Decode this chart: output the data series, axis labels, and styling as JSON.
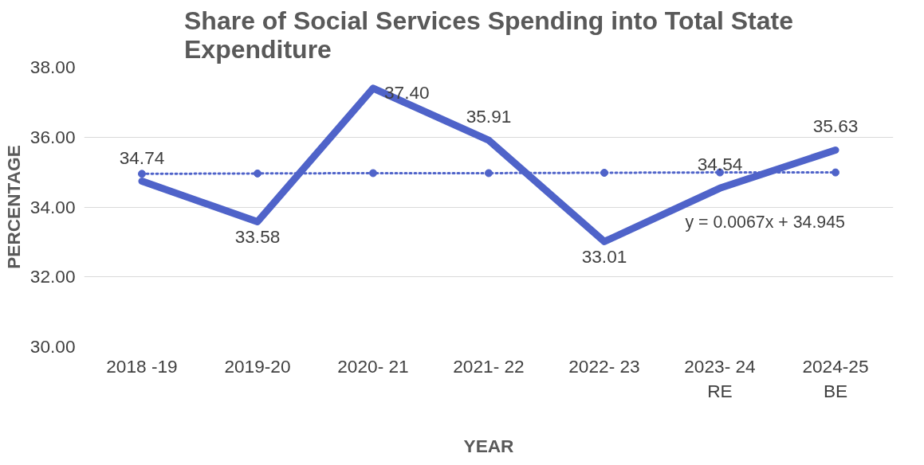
{
  "chart_data": {
    "type": "line",
    "title": "Share of Social Services Spending into Total State Expenditure",
    "xlabel": "YEAR",
    "ylabel": "PERCENTAGE",
    "categories": [
      "2018 -19",
      "2019-20",
      "2020- 21",
      "2021- 22",
      "2022- 23",
      "2023- 24\nRE",
      "2024-25\nBE"
    ],
    "series": [
      {
        "color": "#4f63c9",
        "values": [
          34.74,
          33.58,
          37.4,
          35.91,
          33.01,
          34.54,
          35.63
        ],
        "value_labels": [
          "34.74",
          "33.58",
          "37.40",
          "35.91",
          "33.01",
          "34.54",
          "35.63"
        ],
        "line_style": "solid",
        "marker": "none"
      },
      {
        "type": "line",
        "color": "#4f63c9",
        "values": [
          34.95,
          34.96,
          34.97,
          34.97,
          34.98,
          34.99,
          34.99
        ],
        "line_style": "dotted",
        "marker": "circle"
      }
    ],
    "annotations": [
      "y = 0.0067x + 34.945"
    ],
    "ylim": [
      30,
      38
    ],
    "yticks": [
      {
        "value": 30,
        "label": "30.00"
      },
      {
        "value": 32,
        "label": "32.00"
      },
      {
        "value": 34,
        "label": "34.00"
      },
      {
        "value": 36,
        "label": "36.00"
      },
      {
        "value": 38,
        "label": "38.00"
      }
    ],
    "grid": "y"
  }
}
